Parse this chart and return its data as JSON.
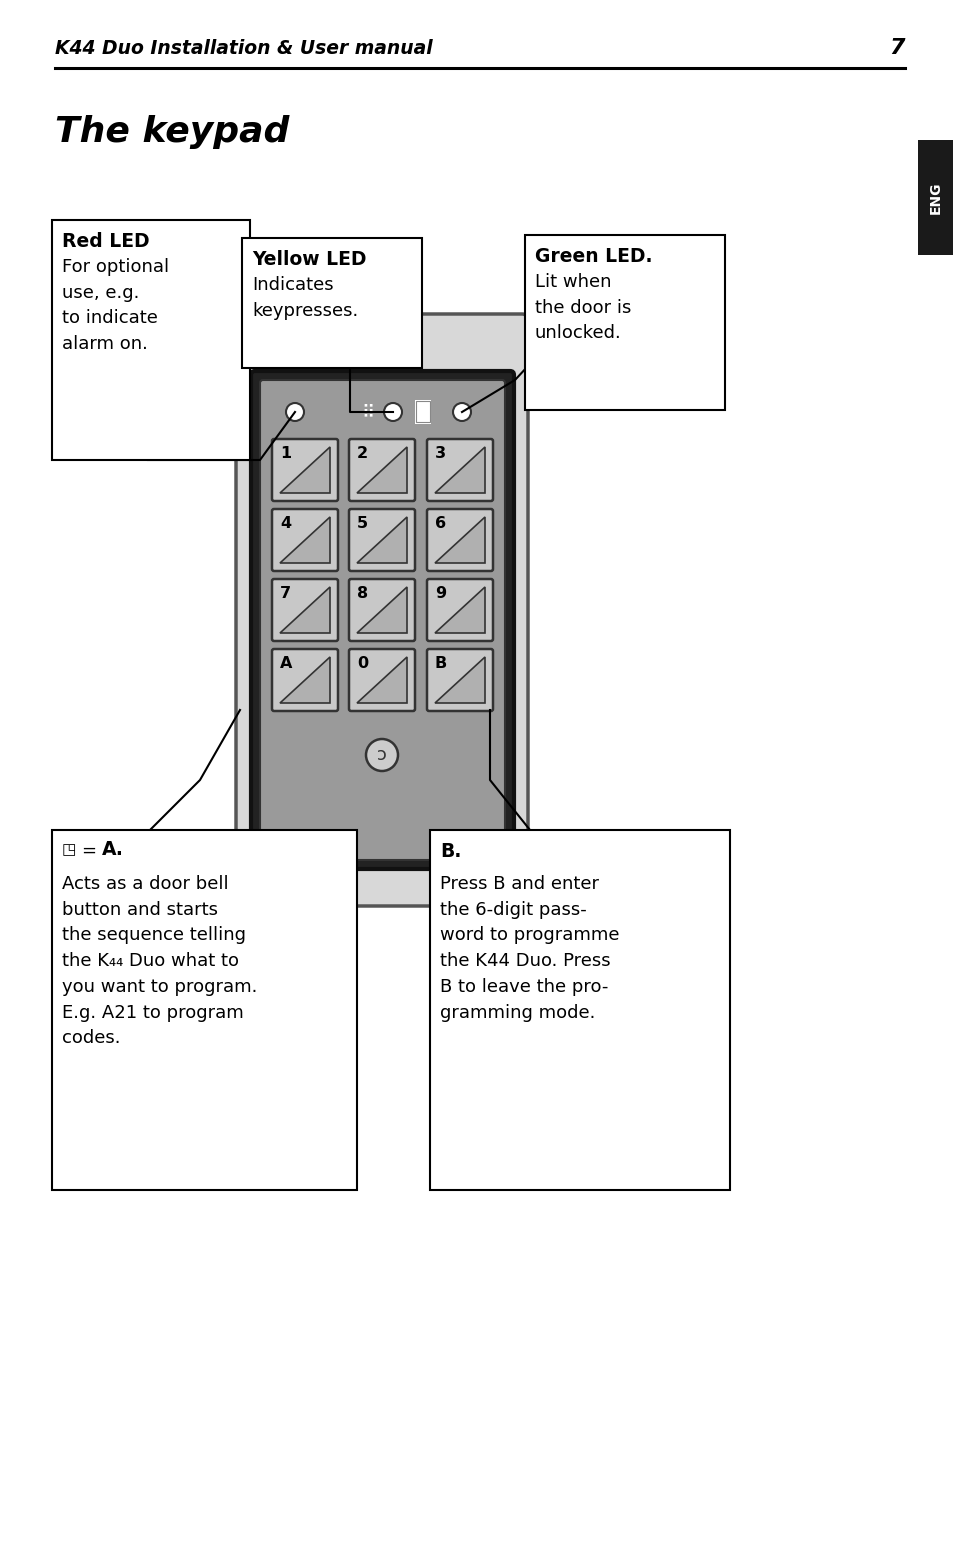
{
  "page_title": "K44 Duo Installation & User manual",
  "page_number": "7",
  "section_title": "The keypad",
  "bg_color": "#ffffff",
  "eng_tab_bg": "#1a1a1a",
  "eng_tab_text": "#ffffff",
  "box_red_title": "Red LED",
  "box_red_body": "For optional\nuse, e.g.\nto indicate\nalarm on.",
  "box_yellow_title": "Yellow LED",
  "box_yellow_body": "Indicates\nkeypresses.",
  "box_green_title": "Green LED.",
  "box_green_body": "Lit when\nthe door is\nunlocked.",
  "box_a_bell": "◳",
  "box_a_bold": "A.",
  "box_a_body": "Acts as a door bell\nbutton and starts\nthe sequence telling\nthe K44 Duo what to\nyou want to program.\nE.g. A21 to program\ncodes.",
  "box_b_title": "B.",
  "box_b_body": "Press B and enter\nthe 6-digit pass-\nword to programme\nthe K44 Duo. Press\nB to leave the pro-\ngramming mode.",
  "key_labels": [
    "1",
    "2",
    "3",
    "4",
    "5",
    "6",
    "7",
    "8",
    "9",
    "A",
    "0",
    "B"
  ],
  "housing_color": "#d0d0d0",
  "housing_dark": "#b8b8b8",
  "keypad_color": "#a0a0a0",
  "key_face": "#c8c8c8",
  "key_tri": "#b0b0b0"
}
